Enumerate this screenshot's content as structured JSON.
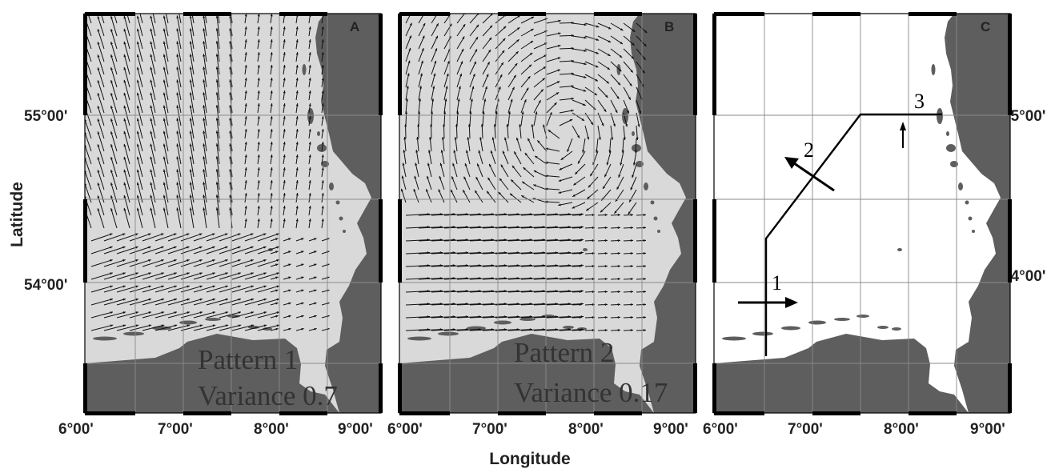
{
  "axes": {
    "x_label": "Longitude",
    "y_label": "Latitude",
    "x_ticks": [
      "6°00'",
      "7°00'",
      "8°00'",
      "9°00'"
    ],
    "y_ticks": [
      "55°00'",
      "54°00'"
    ]
  },
  "panels": [
    {
      "id": "A",
      "letter": "A",
      "pattern_label": "Pattern 1",
      "variance_label": "Variance 0.7"
    },
    {
      "id": "B",
      "letter": "B",
      "pattern_label": "Pattern 2",
      "variance_label": "Variance 0.17"
    },
    {
      "id": "C",
      "letter": "C",
      "routes": [
        {
          "number": "1"
        },
        {
          "number": "2"
        },
        {
          "number": "3"
        }
      ]
    }
  ],
  "colors": {
    "land": "#5e5e5e",
    "sea_shaded": "#d9d9d9",
    "sea_plain": "#ffffff",
    "grid": "#8a8a8a",
    "arrow": "#111111"
  }
}
